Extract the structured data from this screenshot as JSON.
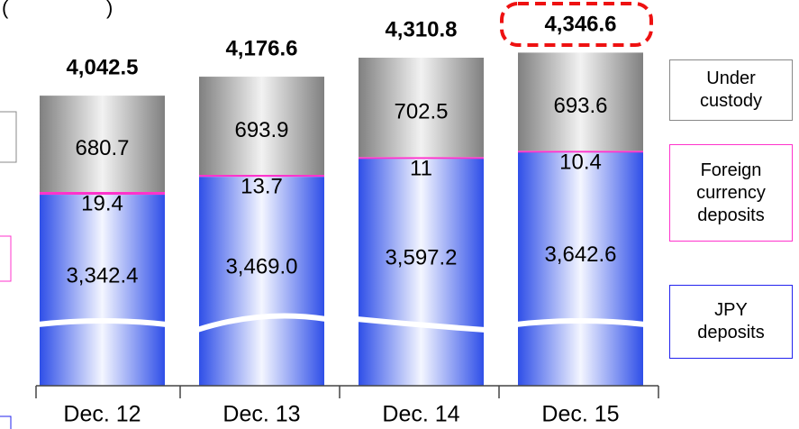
{
  "chart_data": {
    "type": "bar",
    "stacked": true,
    "axis_break": true,
    "categories": [
      "Dec. 12",
      "Dec. 13",
      "Dec. 14",
      "Dec. 15"
    ],
    "series": [
      {
        "name": "JPY deposits",
        "color": "#3f5ff0",
        "values": [
          3342.4,
          3469.0,
          3597.2,
          3642.6
        ],
        "value_labels": [
          "3,342.4",
          "3,469.0",
          "3,597.2",
          "3,642.6"
        ]
      },
      {
        "name": "Foreign currency deposits",
        "color": "#ff33cc",
        "values": [
          19.4,
          13.7,
          11.0,
          10.4
        ]
      },
      {
        "name": "Under custody",
        "color": "#8a8a8a",
        "values": [
          680.7,
          693.9,
          702.5,
          693.6
        ]
      }
    ],
    "totals": {
      "values": [
        4042.5,
        4176.6,
        4310.8,
        4346.6
      ],
      "value_labels": [
        "4,042.5",
        "4,176.6",
        "4,310.8",
        "4,346.6"
      ]
    },
    "ylim": [
      2900,
      4400
    ]
  }
}
